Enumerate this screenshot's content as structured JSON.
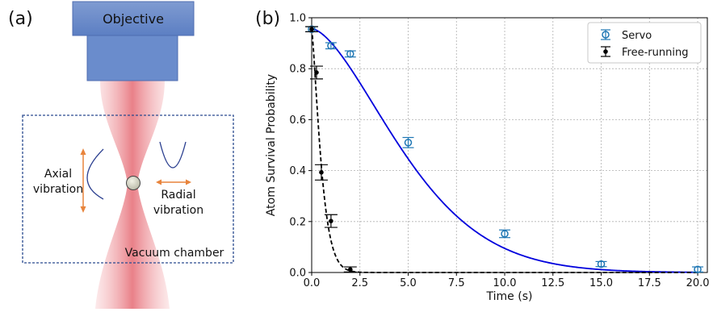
{
  "panel_a": {
    "label": "(a)",
    "objective_label": "Objective",
    "axial_label_line1": "Axial",
    "axial_label_line2": "vibration",
    "radial_label_line1": "Radial",
    "radial_label_line2": "vibration",
    "chamber_label": "Vacuum chamber"
  },
  "chart_data": {
    "type": "scatter",
    "panel_label": "(b)",
    "xlabel": "Time (s)",
    "ylabel": "Atom Survival Probability",
    "xlim": [
      0,
      20.5
    ],
    "ylim": [
      0,
      1.0
    ],
    "xticks": [
      "0.0",
      "2.5",
      "5.0",
      "7.5",
      "10.0",
      "12.5",
      "15.0",
      "17.5",
      "20.0"
    ],
    "yticks": [
      "0.0",
      "0.2",
      "0.4",
      "0.6",
      "0.8",
      "1.0"
    ],
    "grid": true,
    "legend_position": "top-right",
    "colors": {
      "servo": "#1f77b4",
      "servo_fit": "#0000dd",
      "free": "#000000"
    },
    "series": [
      {
        "name": "Servo",
        "marker": "open-circle",
        "points": [
          {
            "x": 0.0,
            "y": 0.955,
            "yerr": 0.01
          },
          {
            "x": 1.0,
            "y": 0.89,
            "yerr": 0.012
          },
          {
            "x": 2.0,
            "y": 0.858,
            "yerr": 0.012
          },
          {
            "x": 5.0,
            "y": 0.51,
            "yerr": 0.02
          },
          {
            "x": 10.0,
            "y": 0.152,
            "yerr": 0.015
          },
          {
            "x": 15.0,
            "y": 0.033,
            "yerr": 0.01
          },
          {
            "x": 20.0,
            "y": 0.012,
            "yerr": 0.01
          }
        ],
        "fit": {
          "style": "solid",
          "model": "a*exp(-(t/tau)^n)",
          "a": 0.957,
          "tau": 5.92,
          "n": 1.6
        }
      },
      {
        "name": "Free-running",
        "marker": "filled-dot",
        "points": [
          {
            "x": 0.0,
            "y": 0.955,
            "yerr": 0.01
          },
          {
            "x": 0.25,
            "y": 0.785,
            "yerr": 0.025
          },
          {
            "x": 0.5,
            "y": 0.393,
            "yerr": 0.03
          },
          {
            "x": 1.0,
            "y": 0.202,
            "yerr": 0.025
          },
          {
            "x": 2.0,
            "y": 0.012,
            "yerr": 0.01
          }
        ],
        "fit": {
          "style": "dashed",
          "model": "a*exp(-(t/tau)^n)",
          "a": 0.957,
          "tau": 0.58,
          "n": 1.3
        }
      }
    ]
  }
}
